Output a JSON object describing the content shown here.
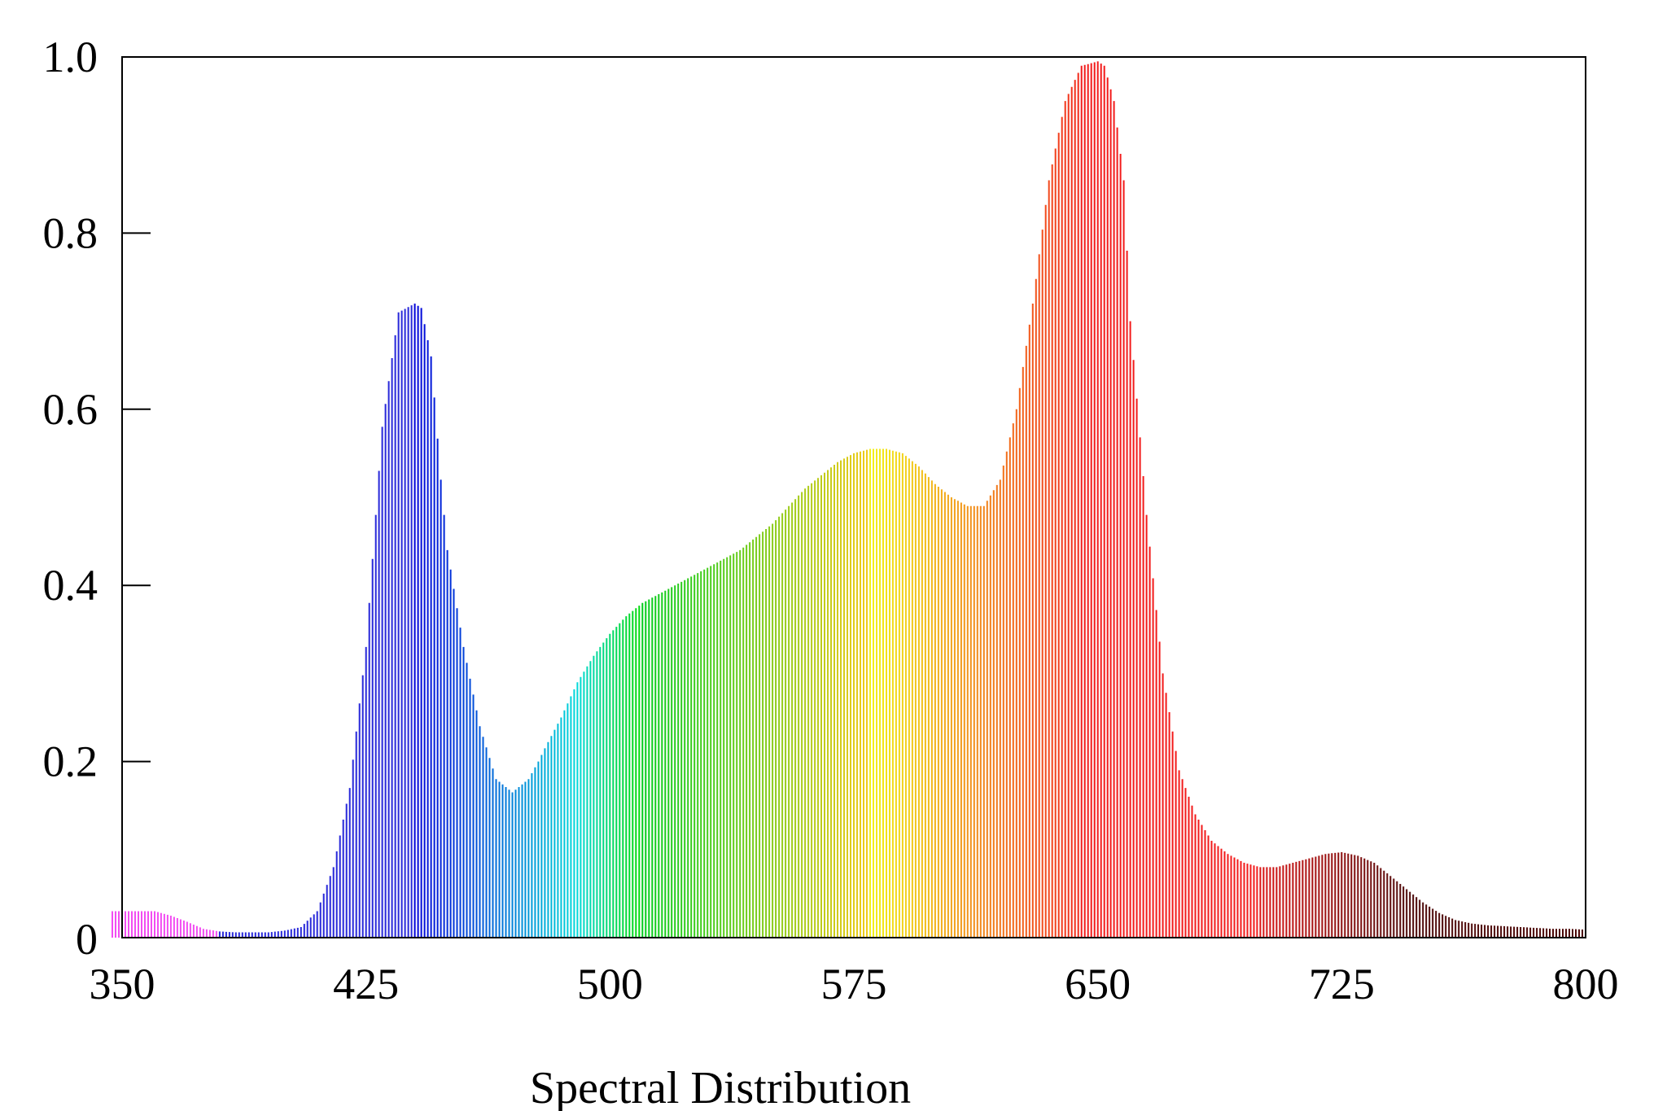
{
  "chart_data": {
    "type": "bar",
    "title": "",
    "xlabel": "Spectral Distribution",
    "ylabel": "",
    "xlim": [
      350,
      800
    ],
    "ylim": [
      0,
      1.0
    ],
    "x_ticks": [
      "350",
      "425",
      "500",
      "575",
      "650",
      "725",
      "800"
    ],
    "y_ticks": [
      "0",
      "0.2",
      "0.4",
      "0.6",
      "0.8",
      "1.0"
    ],
    "grid": false,
    "legend": "none",
    "x": [
      350,
      355,
      360,
      365,
      370,
      375,
      380,
      385,
      390,
      395,
      400,
      405,
      410,
      415,
      420,
      425,
      430,
      435,
      440,
      442,
      445,
      448,
      450,
      455,
      460,
      465,
      470,
      475,
      478,
      480,
      485,
      490,
      495,
      500,
      505,
      510,
      515,
      520,
      525,
      530,
      535,
      540,
      545,
      550,
      555,
      560,
      565,
      570,
      575,
      580,
      585,
      590,
      595,
      600,
      605,
      610,
      615,
      620,
      625,
      630,
      635,
      640,
      645,
      650,
      652,
      655,
      658,
      660,
      665,
      670,
      675,
      680,
      685,
      690,
      695,
      700,
      705,
      710,
      715,
      720,
      725,
      730,
      735,
      740,
      745,
      750,
      755,
      760,
      765,
      770,
      775,
      780,
      785,
      790,
      795,
      800
    ],
    "values": [
      0.03,
      0.03,
      0.03,
      0.025,
      0.018,
      0.01,
      0.007,
      0.006,
      0.006,
      0.006,
      0.008,
      0.012,
      0.03,
      0.08,
      0.17,
      0.33,
      0.58,
      0.71,
      0.72,
      0.715,
      0.66,
      0.52,
      0.44,
      0.33,
      0.24,
      0.18,
      0.165,
      0.18,
      0.2,
      0.215,
      0.25,
      0.29,
      0.32,
      0.345,
      0.365,
      0.38,
      0.39,
      0.4,
      0.41,
      0.42,
      0.43,
      0.44,
      0.455,
      0.47,
      0.49,
      0.51,
      0.525,
      0.54,
      0.55,
      0.555,
      0.555,
      0.55,
      0.535,
      0.515,
      0.5,
      0.49,
      0.49,
      0.52,
      0.6,
      0.72,
      0.86,
      0.95,
      0.99,
      0.995,
      0.99,
      0.95,
      0.86,
      0.7,
      0.48,
      0.3,
      0.19,
      0.14,
      0.11,
      0.095,
      0.085,
      0.08,
      0.08,
      0.085,
      0.09,
      0.095,
      0.097,
      0.093,
      0.085,
      0.07,
      0.055,
      0.04,
      0.028,
      0.02,
      0.016,
      0.014,
      0.013,
      0.012,
      0.011,
      0.01,
      0.01,
      0.009
    ]
  }
}
